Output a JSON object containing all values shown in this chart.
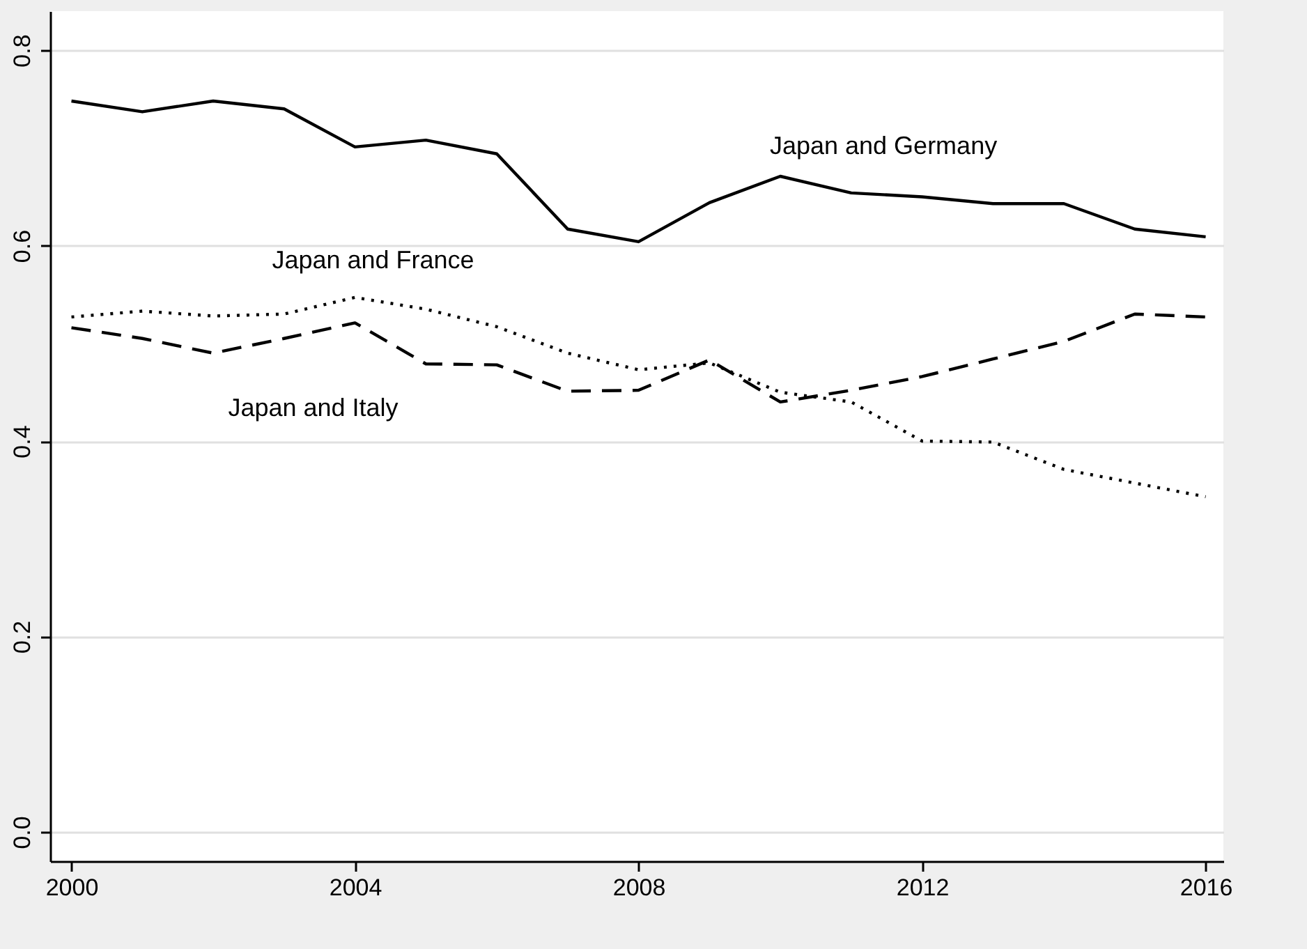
{
  "chart_data": {
    "type": "line",
    "x": [
      2000,
      2001,
      2002,
      2003,
      2004,
      2005,
      2006,
      2007,
      2008,
      2009,
      2010,
      2011,
      2012,
      2013,
      2014,
      2015,
      2016
    ],
    "series": [
      {
        "name": "Japan and Germany",
        "color": "#000000",
        "line_style": "solid",
        "values": [
          0.748,
          0.737,
          0.748,
          0.74,
          0.701,
          0.708,
          0.694,
          0.617,
          0.604,
          0.644,
          0.671,
          0.654,
          0.65,
          0.643,
          0.643,
          0.617,
          0.609
        ]
      },
      {
        "name": "Japan and France",
        "color": "#000000",
        "line_style": "dotted",
        "values": [
          0.527,
          0.533,
          0.528,
          0.53,
          0.547,
          0.535,
          0.517,
          0.49,
          0.473,
          0.48,
          0.45,
          0.44,
          0.4,
          0.399,
          0.371,
          0.357,
          0.343
        ]
      },
      {
        "name": "Japan and Italy",
        "color": "#000000",
        "line_style": "dashed",
        "values": [
          0.516,
          0.505,
          0.49,
          0.505,
          0.521,
          0.479,
          0.478,
          0.451,
          0.452,
          0.483,
          0.44,
          0.452,
          0.466,
          0.484,
          0.502,
          0.53,
          0.527
        ]
      }
    ],
    "xlim": [
      1999.7,
      2016.25
    ],
    "ylim": [
      -0.03,
      0.84
    ],
    "xticks": [
      2000,
      2004,
      2008,
      2012,
      2016
    ],
    "yticks": [
      {
        "value": 0,
        "label": "0.0"
      },
      0.2,
      0.4,
      0.6,
      0.8
    ],
    "grid": "y",
    "marker": "none"
  }
}
